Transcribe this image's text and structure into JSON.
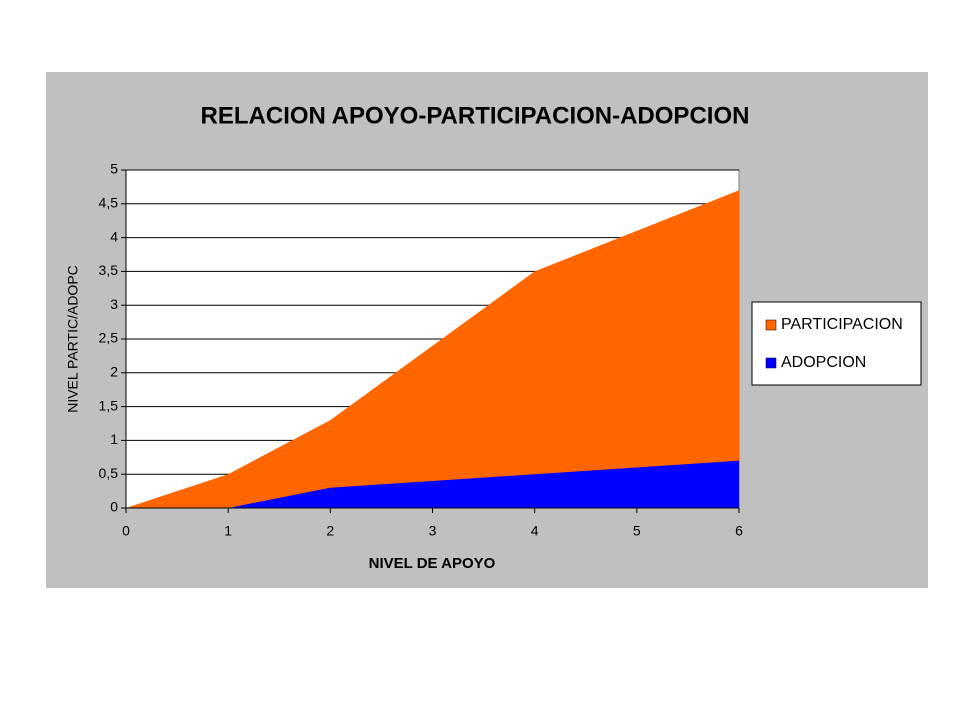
{
  "chart_data": {
    "type": "area",
    "title": "RELACION APOYO-PARTICIPACION-ADOPCION",
    "x_label": "NIVEL DE APOYO",
    "y_label": "NIVEL PARTIC/ADOPC",
    "x": [
      0,
      1,
      2,
      3,
      4,
      5,
      6
    ],
    "series": [
      {
        "name": "PARTICIPACION",
        "color": "#ff6600",
        "values": [
          0,
          0.5,
          1.3,
          2.4,
          3.5,
          4.1,
          4.7
        ]
      },
      {
        "name": "ADOPCION",
        "color": "#0000ff",
        "values": [
          0,
          0,
          0.3,
          0.4,
          0.5,
          0.6,
          0.7
        ]
      }
    ],
    "xlim": [
      0,
      6
    ],
    "xticks": [
      0,
      1,
      2,
      3,
      4,
      5,
      6
    ],
    "ylim": [
      0,
      5
    ],
    "yticks": [
      0,
      {
        "value": 0.5,
        "label": "0,5"
      },
      1,
      {
        "value": 1.5,
        "label": "1,5"
      },
      2,
      {
        "value": 2.5,
        "label": "2,5"
      },
      3,
      {
        "value": 3.5,
        "label": "3,5"
      },
      4,
      {
        "value": 4.5,
        "label": "4,5"
      },
      5
    ],
    "grid": true,
    "legend": "right"
  }
}
